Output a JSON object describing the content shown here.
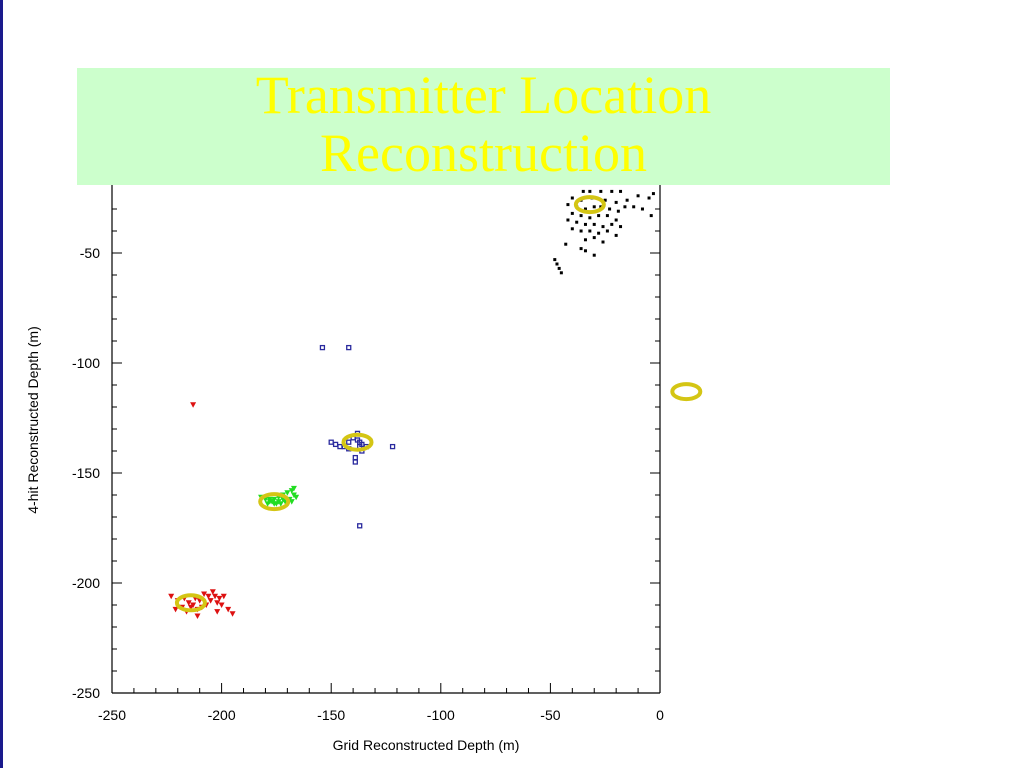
{
  "slide": {
    "title": "Transmitter Location Reconstruction"
  },
  "colors": {
    "title_background": "#ccffcc",
    "title_text": "#ffff00",
    "left_bar": "#1a1a8c",
    "ring": "#d4c514"
  },
  "chart_data": {
    "type": "scatter",
    "xlabel": "Grid Reconstructed Depth (m)",
    "ylabel": "4-hit Reconstructed Depth (m)",
    "xlim": [
      -250,
      0
    ],
    "ylim": [
      -250,
      -22
    ],
    "x_ticks": [
      -250,
      -200,
      -150,
      -100,
      -50,
      0
    ],
    "y_ticks": [
      -250,
      -200,
      -150,
      -100,
      -50
    ],
    "series": [
      {
        "color": "#000000",
        "marker": "dot",
        "points": [
          [
            -35,
            -22
          ],
          [
            -32,
            -22
          ],
          [
            -27,
            -22
          ],
          [
            -22,
            -22
          ],
          [
            -18,
            -22
          ],
          [
            -40,
            -25
          ],
          [
            -36,
            -26
          ],
          [
            -31,
            -25
          ],
          [
            -25,
            -26
          ],
          [
            -20,
            -27
          ],
          [
            -15,
            -26
          ],
          [
            -10,
            -24
          ],
          [
            -5,
            -25
          ],
          [
            -3,
            -23
          ],
          [
            -42,
            -28
          ],
          [
            -38,
            -29
          ],
          [
            -34,
            -30
          ],
          [
            -30,
            -29
          ],
          [
            -27,
            -29
          ],
          [
            -23,
            -30
          ],
          [
            -19,
            -31
          ],
          [
            -16,
            -29
          ],
          [
            -12,
            -29
          ],
          [
            -8,
            -30
          ],
          [
            -40,
            -32
          ],
          [
            -36,
            -33
          ],
          [
            -32,
            -34
          ],
          [
            -28,
            -33
          ],
          [
            -24,
            -33
          ],
          [
            -20,
            -35
          ],
          [
            -4,
            -33
          ],
          [
            -42,
            -35
          ],
          [
            -38,
            -36
          ],
          [
            -34,
            -37
          ],
          [
            -30,
            -37
          ],
          [
            -26,
            -38
          ],
          [
            -22,
            -37
          ],
          [
            -18,
            -38
          ],
          [
            -40,
            -39
          ],
          [
            -36,
            -40
          ],
          [
            -32,
            -40
          ],
          [
            -28,
            -41
          ],
          [
            -24,
            -40
          ],
          [
            -20,
            -42
          ],
          [
            -34,
            -44
          ],
          [
            -30,
            -43
          ],
          [
            -26,
            -45
          ],
          [
            -43,
            -46
          ],
          [
            -36,
            -48
          ],
          [
            -30,
            -51
          ],
          [
            -34,
            -49
          ],
          [
            -48,
            -53
          ],
          [
            -47,
            -55
          ],
          [
            -46,
            -57
          ],
          [
            -45,
            -59
          ]
        ]
      },
      {
        "color": "#2a2a9e",
        "marker": "square",
        "points": [
          [
            -154,
            -93
          ],
          [
            -142,
            -93
          ],
          [
            -150,
            -136
          ],
          [
            -148,
            -137
          ],
          [
            -146,
            -138
          ],
          [
            -144,
            -138
          ],
          [
            -142,
            -136
          ],
          [
            -140,
            -134
          ],
          [
            -138,
            -135
          ],
          [
            -137,
            -136
          ],
          [
            -136,
            -137
          ],
          [
            -134,
            -138
          ],
          [
            -138,
            -132
          ],
          [
            -142,
            -139
          ],
          [
            -136,
            -140
          ],
          [
            -139,
            -143
          ],
          [
            -139,
            -145
          ],
          [
            -137,
            -138
          ],
          [
            -122,
            -138
          ],
          [
            -137,
            -174
          ]
        ]
      },
      {
        "color": "#22dd22",
        "marker": "triangle",
        "points": [
          [
            -182,
            -161
          ],
          [
            -180,
            -162
          ],
          [
            -178,
            -163
          ],
          [
            -176,
            -162
          ],
          [
            -174,
            -161
          ],
          [
            -172,
            -160
          ],
          [
            -170,
            -159
          ],
          [
            -168,
            -158
          ],
          [
            -167,
            -160
          ],
          [
            -169,
            -162
          ],
          [
            -171,
            -163
          ],
          [
            -173,
            -164
          ],
          [
            -175,
            -164
          ],
          [
            -177,
            -163
          ],
          [
            -179,
            -164
          ],
          [
            -166,
            -161
          ],
          [
            -168,
            -163
          ],
          [
            -170,
            -164
          ],
          [
            -172,
            -162
          ],
          [
            -174,
            -163
          ],
          [
            -176,
            -164
          ],
          [
            -178,
            -162
          ],
          [
            -167,
            -157
          ]
        ]
      },
      {
        "color": "#dd1111",
        "marker": "triangle",
        "points": [
          [
            -213,
            -119
          ],
          [
            -223,
            -206
          ],
          [
            -220,
            -208
          ],
          [
            -217,
            -207
          ],
          [
            -215,
            -209
          ],
          [
            -213,
            -210
          ],
          [
            -211,
            -212
          ],
          [
            -209,
            -211
          ],
          [
            -207,
            -210
          ],
          [
            -205,
            -208
          ],
          [
            -203,
            -206
          ],
          [
            -201,
            -207
          ],
          [
            -200,
            -210
          ],
          [
            -202,
            -209
          ],
          [
            -204,
            -204
          ],
          [
            -206,
            -206
          ],
          [
            -208,
            -205
          ],
          [
            -210,
            -208
          ],
          [
            -212,
            -207
          ],
          [
            -214,
            -211
          ],
          [
            -218,
            -211
          ],
          [
            -221,
            -212
          ],
          [
            -216,
            -213
          ],
          [
            -211,
            -215
          ],
          [
            -199,
            -206
          ],
          [
            -197,
            -212
          ],
          [
            -195,
            -214
          ],
          [
            -202,
            -213
          ]
        ]
      }
    ],
    "reconstructed_rings": [
      [
        -32,
        -28
      ],
      [
        -138,
        -136
      ],
      [
        -176,
        -163
      ],
      [
        -214,
        -209
      ],
      [
        12,
        -113
      ]
    ]
  }
}
